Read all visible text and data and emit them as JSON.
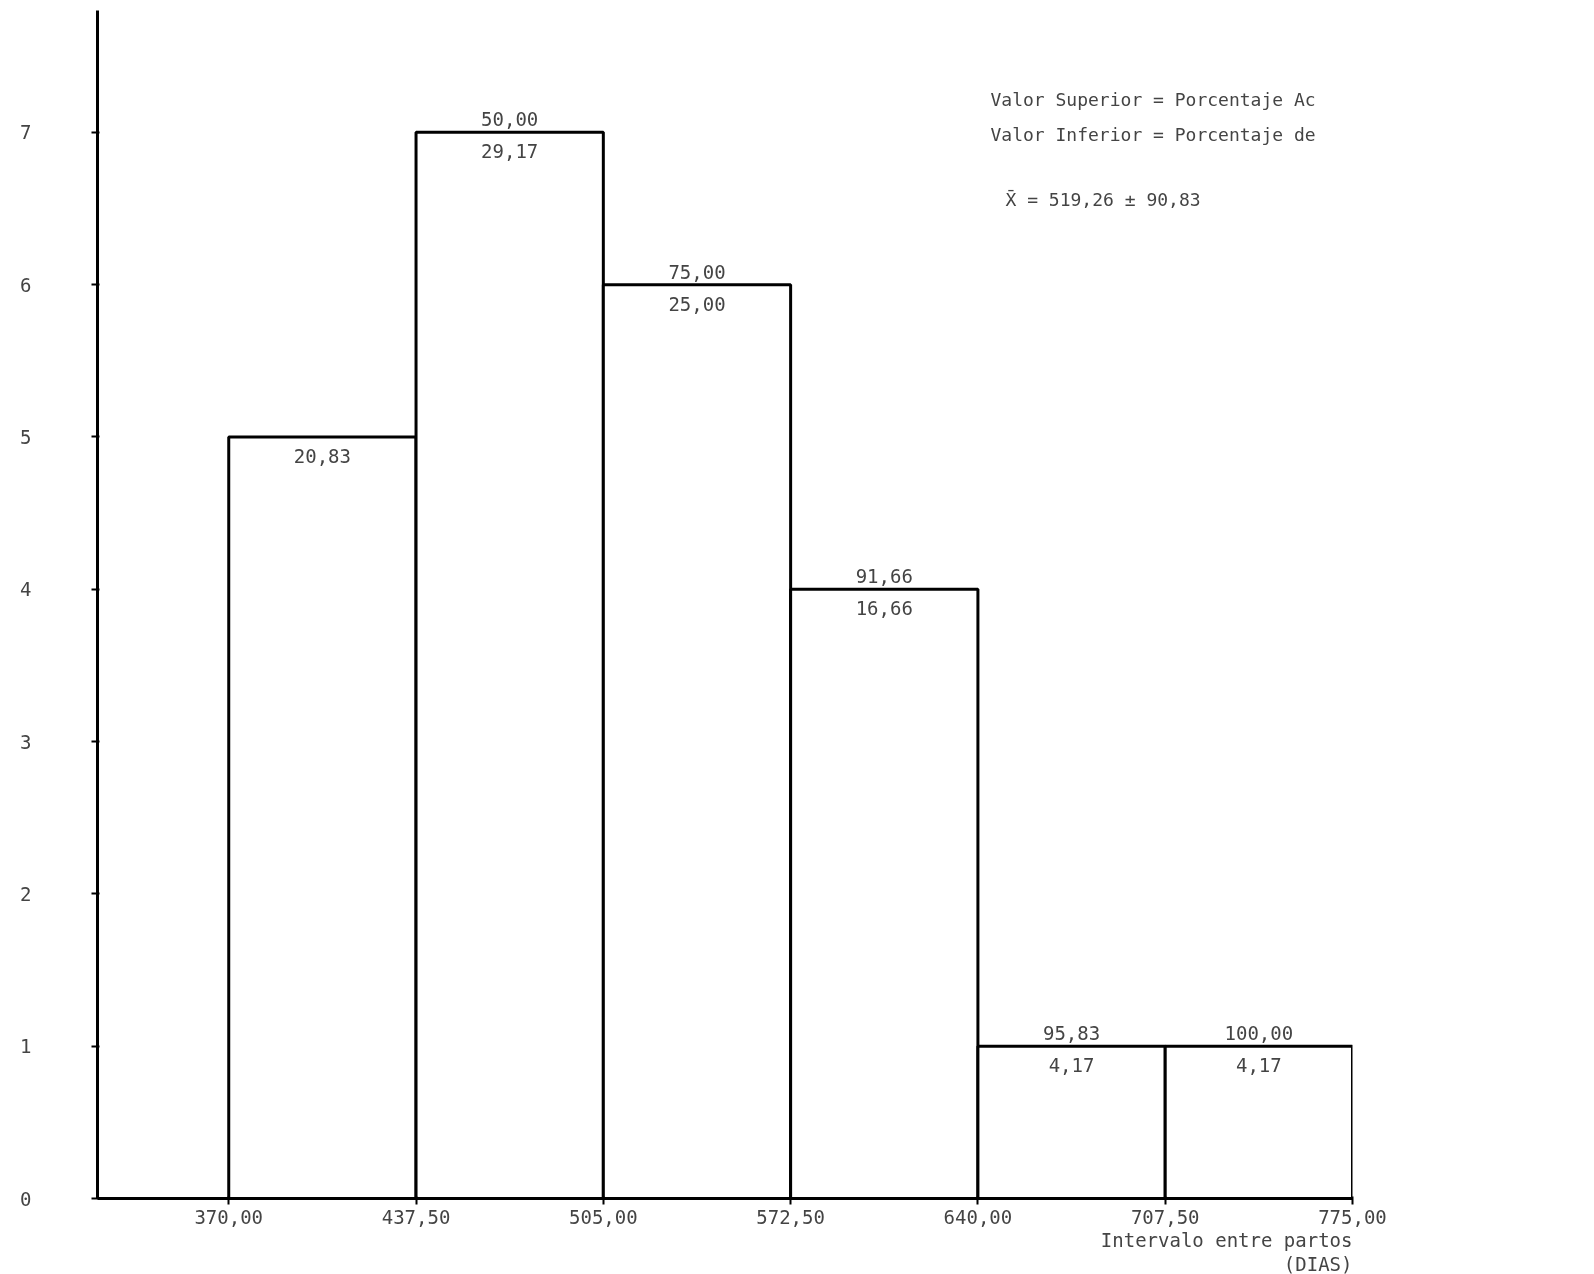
{
  "chart_data": {
    "type": "histogram",
    "bins": [
      370,
      437.5,
      505,
      572.5,
      640,
      707.5,
      775
    ],
    "values": [
      5,
      7,
      6,
      4,
      1,
      1
    ],
    "color": "#ffffff",
    "xlim": [
      322.7,
      775
    ],
    "ylim": [
      0,
      7.8
    ],
    "xticks": [
      {
        "value": 370,
        "label": "370,00"
      },
      {
        "value": 437.5,
        "label": "437,50"
      },
      {
        "value": 505,
        "label": "505,00"
      },
      {
        "value": 572.5,
        "label": "572,50"
      },
      {
        "value": 640,
        "label": "640,00"
      },
      {
        "value": 707.5,
        "label": "707,50"
      },
      {
        "value": 775,
        "label": "775,00"
      }
    ],
    "yticks": [
      0,
      1,
      2,
      3,
      4,
      5,
      6,
      7
    ],
    "xlabel": "Intervalo entre partos\n(DIAS)",
    "grid": false,
    "annotations": [
      {
        "text": "20,83",
        "x": 403.75,
        "y": 5
      },
      {
        "text": "50,00",
        "x": 471.25,
        "y": 7
      },
      {
        "text": "29,17",
        "x": 471.25,
        "y": 7
      },
      {
        "text": "75,00",
        "x": 538.75,
        "y": 6
      },
      {
        "text": "25,00",
        "x": 538.75,
        "y": 6
      },
      {
        "text": "91,66",
        "x": 606.25,
        "y": 4
      },
      {
        "text": "16,66",
        "x": 606.25,
        "y": 4
      },
      {
        "text": "95,83",
        "x": 673.75,
        "y": 1
      },
      {
        "text": "4,17",
        "x": 673.75,
        "y": 1
      },
      {
        "text": "100,00",
        "x": 741.25,
        "y": 1
      },
      {
        "text": "4,17",
        "x": 741.25,
        "y": 1
      },
      "Valor Superior =  Porcentaje Ac",
      "Valor Inferior =  Porcentaje de",
      "X̄ = 519,26 ± 90,83"
    ]
  }
}
